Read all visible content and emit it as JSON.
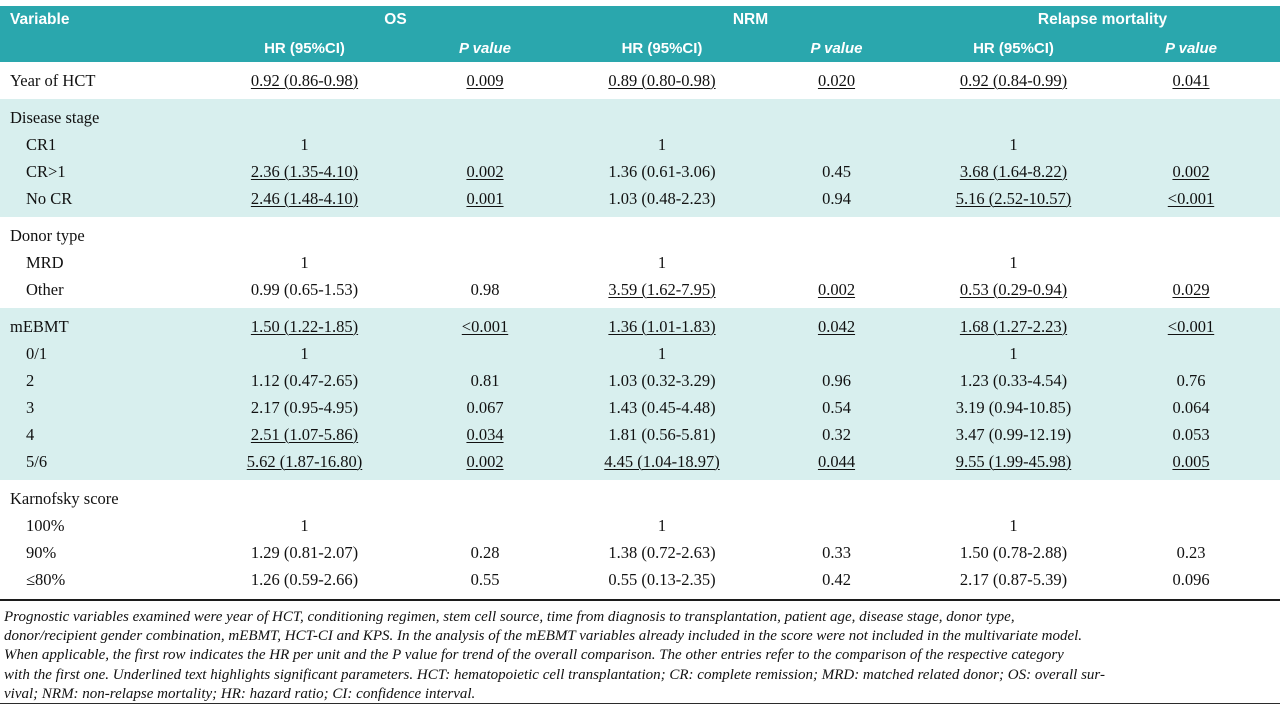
{
  "colors": {
    "header_bg": "#2aa7ad",
    "shade_bg": "#d8efee",
    "rule": "#1c1c1c",
    "text": "#111111"
  },
  "table": {
    "header": {
      "variable": "Variable",
      "group_labels": [
        "OS",
        "NRM",
        "Relapse mortality"
      ],
      "sub_labels": [
        "HR (95%CI)",
        "P value",
        "HR (95%CI)",
        "P value",
        "HR (95%CI)",
        "P value"
      ]
    },
    "groups": [
      {
        "id": "year-of-hct",
        "shade": false,
        "rows": [
          {
            "label": "Year of HCT",
            "indent": false,
            "cells": [
              {
                "t": "0.92 (0.86-0.98)",
                "u": true
              },
              {
                "t": "0.009",
                "u": true
              },
              {
                "t": "0.89 (0.80-0.98)",
                "u": true
              },
              {
                "t": "0.020",
                "u": true
              },
              {
                "t": "0.92 (0.84-0.99)",
                "u": true
              },
              {
                "t": "0.041",
                "u": true
              }
            ]
          }
        ]
      },
      {
        "id": "disease-stage",
        "shade": true,
        "rows": [
          {
            "label": "Disease stage",
            "indent": false,
            "cells": []
          },
          {
            "label": "CR1",
            "indent": true,
            "cells": [
              {
                "t": "1",
                "u": false
              },
              {
                "t": "",
                "u": false
              },
              {
                "t": "1",
                "u": false
              },
              {
                "t": "",
                "u": false
              },
              {
                "t": "1",
                "u": false
              },
              {
                "t": "",
                "u": false
              }
            ]
          },
          {
            "label": "CR>1",
            "indent": true,
            "cells": [
              {
                "t": "2.36 (1.35-4.10)",
                "u": true
              },
              {
                "t": "0.002",
                "u": true
              },
              {
                "t": "1.36 (0.61-3.06)",
                "u": false
              },
              {
                "t": "0.45",
                "u": false
              },
              {
                "t": "3.68 (1.64-8.22)",
                "u": true
              },
              {
                "t": "0.002",
                "u": true
              }
            ]
          },
          {
            "label": "No CR",
            "indent": true,
            "cells": [
              {
                "t": "2.46 (1.48-4.10)",
                "u": true
              },
              {
                "t": "0.001",
                "u": true
              },
              {
                "t": "1.03 (0.48-2.23)",
                "u": false
              },
              {
                "t": "0.94",
                "u": false
              },
              {
                "t": "5.16 (2.52-10.57)",
                "u": true
              },
              {
                "t": "<0.001",
                "u": true
              }
            ]
          }
        ]
      },
      {
        "id": "donor-type",
        "shade": false,
        "rows": [
          {
            "label": "Donor type",
            "indent": false,
            "cells": []
          },
          {
            "label": "MRD",
            "indent": true,
            "cells": [
              {
                "t": "1",
                "u": false
              },
              {
                "t": "",
                "u": false
              },
              {
                "t": "1",
                "u": false
              },
              {
                "t": "",
                "u": false
              },
              {
                "t": "1",
                "u": false
              },
              {
                "t": "",
                "u": false
              }
            ]
          },
          {
            "label": "Other",
            "indent": true,
            "cells": [
              {
                "t": "0.99 (0.65-1.53)",
                "u": false
              },
              {
                "t": "0.98",
                "u": false
              },
              {
                "t": "3.59 (1.62-7.95)",
                "u": true
              },
              {
                "t": "0.002",
                "u": true
              },
              {
                "t": "0.53 (0.29-0.94)",
                "u": true
              },
              {
                "t": "0.029",
                "u": true
              }
            ]
          }
        ]
      },
      {
        "id": "mebmt",
        "shade": true,
        "rows": [
          {
            "label": "mEBMT",
            "indent": false,
            "cells": [
              {
                "t": "1.50 (1.22-1.85)",
                "u": true
              },
              {
                "t": "<0.001",
                "u": true
              },
              {
                "t": "1.36 (1.01-1.83)",
                "u": true
              },
              {
                "t": "0.042",
                "u": true
              },
              {
                "t": "1.68 (1.27-2.23)",
                "u": true
              },
              {
                "t": "<0.001",
                "u": true
              }
            ]
          },
          {
            "label": "0/1",
            "indent": true,
            "cells": [
              {
                "t": "1",
                "u": false
              },
              {
                "t": "",
                "u": false
              },
              {
                "t": "1",
                "u": false
              },
              {
                "t": "",
                "u": false
              },
              {
                "t": "1",
                "u": false
              },
              {
                "t": "",
                "u": false
              }
            ]
          },
          {
            "label": "2",
            "indent": true,
            "cells": [
              {
                "t": "1.12 (0.47-2.65)",
                "u": false
              },
              {
                "t": "0.81",
                "u": false
              },
              {
                "t": "1.03 (0.32-3.29)",
                "u": false
              },
              {
                "t": "0.96",
                "u": false
              },
              {
                "t": "1.23 (0.33-4.54)",
                "u": false
              },
              {
                "t": "0.76",
                "u": false
              }
            ]
          },
          {
            "label": "3",
            "indent": true,
            "cells": [
              {
                "t": "2.17 (0.95-4.95)",
                "u": false
              },
              {
                "t": "0.067",
                "u": false
              },
              {
                "t": "1.43 (0.45-4.48)",
                "u": false
              },
              {
                "t": "0.54",
                "u": false
              },
              {
                "t": "3.19 (0.94-10.85)",
                "u": false
              },
              {
                "t": "0.064",
                "u": false
              }
            ]
          },
          {
            "label": "4",
            "indent": true,
            "cells": [
              {
                "t": "2.51 (1.07-5.86)",
                "u": true
              },
              {
                "t": "0.034",
                "u": true
              },
              {
                "t": "1.81 (0.56-5.81)",
                "u": false
              },
              {
                "t": "0.32",
                "u": false
              },
              {
                "t": "3.47 (0.99-12.19)",
                "u": false
              },
              {
                "t": "0.053",
                "u": false
              }
            ]
          },
          {
            "label": "5/6",
            "indent": true,
            "cells": [
              {
                "t": "5.62 (1.87-16.80)",
                "u": true
              },
              {
                "t": "0.002",
                "u": true
              },
              {
                "t": "4.45 (1.04-18.97)",
                "u": true
              },
              {
                "t": "0.044",
                "u": true
              },
              {
                "t": "9.55 (1.99-45.98)",
                "u": true
              },
              {
                "t": "0.005",
                "u": true
              }
            ]
          }
        ]
      },
      {
        "id": "karnofsky-score",
        "shade": false,
        "rows": [
          {
            "label": "Karnofsky score",
            "indent": false,
            "cells": []
          },
          {
            "label": "100%",
            "indent": true,
            "cells": [
              {
                "t": "1",
                "u": false
              },
              {
                "t": "",
                "u": false
              },
              {
                "t": "1",
                "u": false
              },
              {
                "t": "",
                "u": false
              },
              {
                "t": "1",
                "u": false
              },
              {
                "t": "",
                "u": false
              }
            ]
          },
          {
            "label": "90%",
            "indent": true,
            "cells": [
              {
                "t": "1.29 (0.81-2.07)",
                "u": false
              },
              {
                "t": "0.28",
                "u": false
              },
              {
                "t": "1.38 (0.72-2.63)",
                "u": false
              },
              {
                "t": "0.33",
                "u": false
              },
              {
                "t": "1.50 (0.78-2.88)",
                "u": false
              },
              {
                "t": "0.23",
                "u": false
              }
            ]
          },
          {
            "label": "≤80%",
            "indent": true,
            "cells": [
              {
                "t": "1.26 (0.59-2.66)",
                "u": false
              },
              {
                "t": "0.55",
                "u": false
              },
              {
                "t": "0.55 (0.13-2.35)",
                "u": false
              },
              {
                "t": "0.42",
                "u": false
              },
              {
                "t": "2.17 (0.87-5.39)",
                "u": false
              },
              {
                "t": "0.096",
                "u": false
              }
            ]
          }
        ]
      }
    ],
    "footnote_lines": [
      "Prognostic variables examined were year of HCT, conditioning regimen, stem cell source, time from diagnosis to transplantation, patient age, disease stage, donor type,",
      "donor/recipient gender combination, mEBMT, HCT-CI and KPS. In the analysis of the mEBMT variables already included in the score were not included in the multivariate model.",
      "When applicable, the first row indicates the HR per unit and the P value for trend of the overall comparison. The other entries refer to the comparison of the respective category",
      "with the first one. Underlined text highlights significant parameters. HCT: hematopoietic cell transplantation; CR: complete remission; MRD: matched related donor; OS: overall sur-",
      "vival; NRM: non-relapse mortality; HR: hazard ratio; CI: confidence interval."
    ]
  }
}
